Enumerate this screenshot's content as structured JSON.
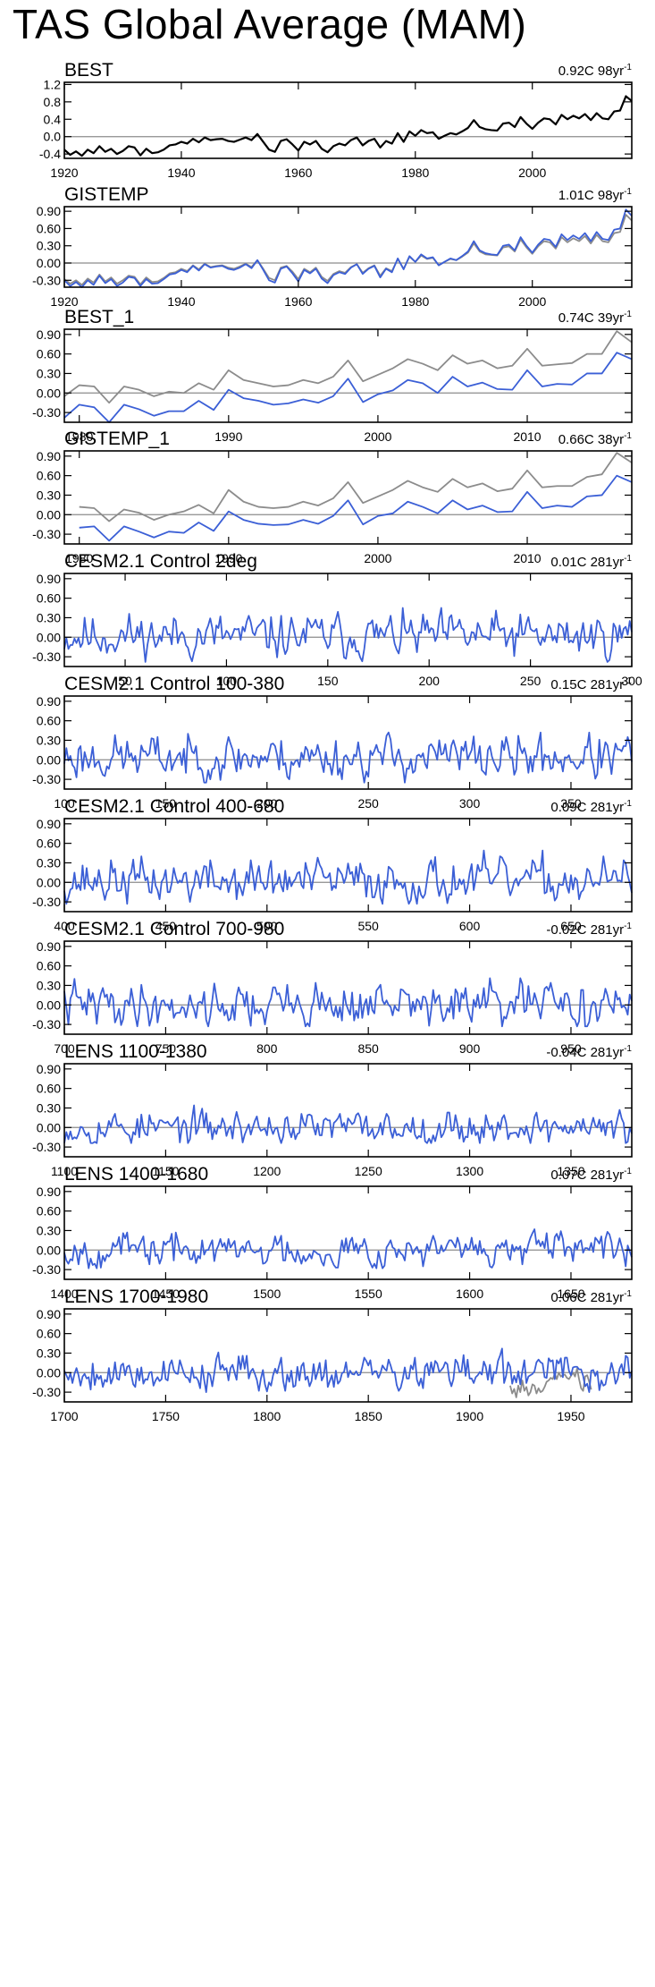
{
  "page": {
    "title": "TAS Global Average (MAM)"
  },
  "colors": {
    "obs": "#000000",
    "model": "#3b5fd6",
    "ref": "#8c8c8c",
    "zero": "#8c8c8c"
  },
  "chart_data": [
    {
      "type": "line",
      "title": "BEST",
      "stat": "0.92C 98yr",
      "stat_sup": "-1",
      "xlim": [
        1920,
        2017
      ],
      "ylim": [
        -0.5,
        1.25
      ],
      "xticks": [
        1920,
        1940,
        1960,
        1980,
        2000
      ],
      "yticks": [
        -0.4,
        0.0,
        0.4,
        0.8,
        1.2
      ],
      "ytick_labels": [
        "-0.4",
        "0.0",
        "0.4",
        "0.8",
        "1.2"
      ],
      "series": [
        {
          "role": "obs",
          "x_start": 1920,
          "values": [
            -0.3,
            -0.42,
            -0.34,
            -0.44,
            -0.3,
            -0.38,
            -0.22,
            -0.35,
            -0.28,
            -0.4,
            -0.33,
            -0.22,
            -0.25,
            -0.43,
            -0.28,
            -0.38,
            -0.36,
            -0.3,
            -0.2,
            -0.18,
            -0.12,
            -0.16,
            -0.05,
            -0.13,
            -0.02,
            -0.08,
            -0.06,
            -0.05,
            -0.1,
            -0.12,
            -0.07,
            -0.02,
            -0.08,
            0.06,
            -0.12,
            -0.3,
            -0.35,
            -0.1,
            -0.06,
            -0.18,
            -0.32,
            -0.12,
            -0.18,
            -0.1,
            -0.28,
            -0.36,
            -0.22,
            -0.16,
            -0.2,
            -0.08,
            -0.02,
            -0.2,
            -0.1,
            -0.05,
            -0.25,
            -0.1,
            -0.16,
            0.08,
            -0.12,
            0.12,
            0.02,
            0.15,
            0.08,
            0.1,
            -0.05,
            0.02,
            0.08,
            0.05,
            0.12,
            0.2,
            0.38,
            0.22,
            0.17,
            0.15,
            0.14,
            0.3,
            0.32,
            0.22,
            0.45,
            0.3,
            0.18,
            0.32,
            0.42,
            0.4,
            0.28,
            0.5,
            0.4,
            0.48,
            0.42,
            0.52,
            0.38,
            0.54,
            0.42,
            0.4,
            0.58,
            0.6,
            0.93,
            0.82
          ]
        }
      ]
    },
    {
      "type": "line",
      "title": "GISTEMP",
      "stat": "1.01C 98yr",
      "stat_sup": "-1",
      "xlim": [
        1920,
        2017
      ],
      "ylim": [
        -0.42,
        0.98
      ],
      "xticks": [
        1920,
        1940,
        1960,
        1980,
        2000
      ],
      "yticks": [
        -0.3,
        0.0,
        0.3,
        0.6,
        0.9
      ],
      "ytick_labels": [
        "-0.30",
        "0.00",
        "0.30",
        "0.60",
        "0.90"
      ],
      "series": [
        {
          "role": "ref",
          "x_start": 1920,
          "values": [
            -0.28,
            -0.36,
            -0.3,
            -0.38,
            -0.27,
            -0.34,
            -0.2,
            -0.32,
            -0.25,
            -0.36,
            -0.3,
            -0.22,
            -0.24,
            -0.37,
            -0.25,
            -0.33,
            -0.32,
            -0.26,
            -0.18,
            -0.16,
            -0.1,
            -0.14,
            -0.04,
            -0.11,
            -0.01,
            -0.07,
            -0.05,
            -0.04,
            -0.08,
            -0.1,
            -0.06,
            -0.01,
            -0.07,
            0.05,
            -0.1,
            -0.26,
            -0.3,
            -0.08,
            -0.05,
            -0.15,
            -0.28,
            -0.1,
            -0.16,
            -0.08,
            -0.24,
            -0.31,
            -0.19,
            -0.14,
            -0.17,
            -0.07,
            -0.02,
            -0.17,
            -0.09,
            -0.04,
            -0.22,
            -0.09,
            -0.14,
            0.07,
            -0.1,
            0.11,
            0.02,
            0.13,
            0.07,
            0.09,
            -0.04,
            0.02,
            0.07,
            0.05,
            0.11,
            0.18,
            0.34,
            0.2,
            0.15,
            0.14,
            0.13,
            0.27,
            0.29,
            0.2,
            0.41,
            0.27,
            0.16,
            0.29,
            0.38,
            0.36,
            0.25,
            0.45,
            0.36,
            0.43,
            0.38,
            0.47,
            0.34,
            0.49,
            0.38,
            0.36,
            0.52,
            0.54,
            0.84,
            0.74
          ]
        },
        {
          "role": "model",
          "x_start": 1920,
          "values": [
            -0.3,
            -0.4,
            -0.33,
            -0.42,
            -0.3,
            -0.38,
            -0.22,
            -0.35,
            -0.28,
            -0.4,
            -0.34,
            -0.24,
            -0.26,
            -0.4,
            -0.28,
            -0.36,
            -0.35,
            -0.28,
            -0.2,
            -0.18,
            -0.12,
            -0.16,
            -0.05,
            -0.13,
            -0.02,
            -0.08,
            -0.06,
            -0.05,
            -0.1,
            -0.12,
            -0.08,
            -0.02,
            -0.09,
            0.05,
            -0.12,
            -0.3,
            -0.34,
            -0.1,
            -0.06,
            -0.18,
            -0.32,
            -0.12,
            -0.18,
            -0.1,
            -0.27,
            -0.35,
            -0.21,
            -0.16,
            -0.19,
            -0.08,
            -0.02,
            -0.19,
            -0.1,
            -0.05,
            -0.25,
            -0.1,
            -0.16,
            0.08,
            -0.11,
            0.12,
            0.02,
            0.15,
            0.08,
            0.1,
            -0.04,
            0.02,
            0.08,
            0.05,
            0.12,
            0.2,
            0.38,
            0.22,
            0.17,
            0.15,
            0.14,
            0.3,
            0.32,
            0.22,
            0.45,
            0.3,
            0.18,
            0.32,
            0.42,
            0.4,
            0.28,
            0.5,
            0.4,
            0.48,
            0.42,
            0.52,
            0.38,
            0.54,
            0.42,
            0.4,
            0.58,
            0.6,
            0.93,
            0.82
          ]
        }
      ]
    },
    {
      "type": "line",
      "title": "BEST_1",
      "stat": "0.74C 39yr",
      "stat_sup": "-1",
      "xlim": [
        1979,
        2017
      ],
      "ylim": [
        -0.45,
        0.98
      ],
      "xticks": [
        1980,
        1990,
        2000,
        2010
      ],
      "yticks": [
        -0.3,
        0.0,
        0.3,
        0.6,
        0.9
      ],
      "ytick_labels": [
        "-0.30",
        "0.00",
        "0.30",
        "0.60",
        "0.90"
      ],
      "series": [
        {
          "role": "ref",
          "x_start": 1979,
          "values": [
            -0.05,
            0.12,
            0.1,
            -0.15,
            0.1,
            0.05,
            -0.05,
            0.02,
            0.0,
            0.15,
            0.05,
            0.35,
            0.2,
            0.15,
            0.1,
            0.12,
            0.2,
            0.15,
            0.25,
            0.5,
            0.18,
            0.28,
            0.38,
            0.52,
            0.45,
            0.35,
            0.58,
            0.45,
            0.5,
            0.38,
            0.42,
            0.68,
            0.42,
            0.44,
            0.46,
            0.6,
            0.6,
            0.95,
            0.78
          ]
        },
        {
          "role": "model",
          "x_start": 1979,
          "values": [
            -0.38,
            -0.18,
            -0.22,
            -0.45,
            -0.18,
            -0.25,
            -0.35,
            -0.28,
            -0.28,
            -0.12,
            -0.26,
            0.05,
            -0.08,
            -0.12,
            -0.18,
            -0.16,
            -0.1,
            -0.15,
            -0.05,
            0.22,
            -0.14,
            -0.02,
            0.04,
            0.2,
            0.15,
            0.0,
            0.25,
            0.1,
            0.16,
            0.06,
            0.05,
            0.35,
            0.1,
            0.14,
            0.13,
            0.3,
            0.3,
            0.62,
            0.52
          ]
        }
      ]
    },
    {
      "type": "line",
      "title": "GISTEMP_1",
      "stat": "0.66C 38yr",
      "stat_sup": "-1",
      "xlim": [
        1979,
        2017
      ],
      "ylim": [
        -0.45,
        0.98
      ],
      "xticks": [
        1980,
        1990,
        2000,
        2010
      ],
      "yticks": [
        -0.3,
        0.0,
        0.3,
        0.6,
        0.9
      ],
      "ytick_labels": [
        "-0.30",
        "0.00",
        "0.30",
        "0.60",
        "0.90"
      ],
      "series": [
        {
          "role": "ref",
          "x_start": 1980,
          "values": [
            0.12,
            0.1,
            -0.1,
            0.08,
            0.03,
            -0.08,
            0.0,
            0.05,
            0.15,
            0.02,
            0.38,
            0.2,
            0.12,
            0.1,
            0.12,
            0.2,
            0.14,
            0.25,
            0.5,
            0.18,
            0.28,
            0.38,
            0.52,
            0.42,
            0.35,
            0.55,
            0.42,
            0.48,
            0.36,
            0.4,
            0.68,
            0.42,
            0.44,
            0.44,
            0.58,
            0.62,
            0.95,
            0.8
          ]
        },
        {
          "role": "model",
          "x_start": 1980,
          "values": [
            -0.2,
            -0.18,
            -0.4,
            -0.18,
            -0.26,
            -0.35,
            -0.26,
            -0.28,
            -0.12,
            -0.25,
            0.05,
            -0.08,
            -0.14,
            -0.16,
            -0.15,
            -0.08,
            -0.14,
            -0.02,
            0.22,
            -0.15,
            -0.02,
            0.02,
            0.2,
            0.12,
            0.02,
            0.22,
            0.08,
            0.14,
            0.04,
            0.05,
            0.35,
            0.1,
            0.14,
            0.12,
            0.28,
            0.3,
            0.6,
            0.5
          ]
        }
      ]
    },
    {
      "type": "line",
      "title": "CESM2.1 Control 2deg",
      "stat": "0.01C 281yr",
      "stat_sup": "-1",
      "xlim": [
        20,
        300
      ],
      "ylim": [
        -0.45,
        0.98
      ],
      "xticks": [
        50,
        100,
        150,
        200,
        250,
        300
      ],
      "yticks": [
        -0.3,
        0.0,
        0.3,
        0.6,
        0.9
      ],
      "ytick_labels": [
        "-0.30",
        "0.00",
        "0.30",
        "0.60",
        "0.90"
      ],
      "series": [
        {
          "role": "model",
          "x_start": 20,
          "noise": {
            "seed": 11,
            "amp": 0.16,
            "mean": 0.02,
            "max": 0.48,
            "min": -0.38
          }
        }
      ]
    },
    {
      "type": "line",
      "title": "CESM2.1 Control 100-380",
      "stat": "0.15C 281yr",
      "stat_sup": "-1",
      "xlim": [
        100,
        380
      ],
      "ylim": [
        -0.45,
        0.98
      ],
      "xticks": [
        100,
        150,
        200,
        250,
        300,
        350
      ],
      "yticks": [
        -0.3,
        0.0,
        0.3,
        0.6,
        0.9
      ],
      "ytick_labels": [
        "-0.30",
        "0.00",
        "0.30",
        "0.60",
        "0.90"
      ],
      "series": [
        {
          "role": "model",
          "x_start": 100,
          "noise": {
            "seed": 23,
            "amp": 0.16,
            "mean": 0.04,
            "max": 0.5,
            "min": -0.35
          }
        }
      ]
    },
    {
      "type": "line",
      "title": "CESM2.1 Control 400-680",
      "stat": "0.09C 281yr",
      "stat_sup": "-1",
      "xlim": [
        400,
        680
      ],
      "ylim": [
        -0.45,
        0.98
      ],
      "xticks": [
        400,
        450,
        500,
        550,
        600,
        650
      ],
      "yticks": [
        -0.3,
        0.0,
        0.3,
        0.6,
        0.9
      ],
      "ytick_labels": [
        "-0.30",
        "0.00",
        "0.30",
        "0.60",
        "0.90"
      ],
      "series": [
        {
          "role": "model",
          "x_start": 400,
          "noise": {
            "seed": 37,
            "amp": 0.16,
            "mean": 0.02,
            "max": 0.62,
            "min": -0.33
          }
        }
      ]
    },
    {
      "type": "line",
      "title": "CESM2.1 Control 700-980",
      "stat": "-0.02C 281yr",
      "stat_sup": "-1",
      "xlim": [
        700,
        980
      ],
      "ylim": [
        -0.45,
        0.98
      ],
      "xticks": [
        700,
        750,
        800,
        850,
        900,
        950
      ],
      "yticks": [
        -0.3,
        0.0,
        0.3,
        0.6,
        0.9
      ],
      "ytick_labels": [
        "-0.30",
        "0.00",
        "0.30",
        "0.60",
        "0.90"
      ],
      "series": [
        {
          "role": "model",
          "x_start": 700,
          "noise": {
            "seed": 41,
            "amp": 0.16,
            "mean": 0.0,
            "max": 0.42,
            "min": -0.33
          }
        }
      ]
    },
    {
      "type": "line",
      "title": "LENS 1100-1380",
      "stat": "-0.04C 281yr",
      "stat_sup": "-1",
      "xlim": [
        1100,
        1380
      ],
      "ylim": [
        -0.45,
        0.98
      ],
      "xticks": [
        1100,
        1150,
        1200,
        1250,
        1300,
        1350
      ],
      "yticks": [
        -0.3,
        0.0,
        0.3,
        0.6,
        0.9
      ],
      "ytick_labels": [
        "-0.30",
        "0.00",
        "0.30",
        "0.60",
        "0.90"
      ],
      "series": [
        {
          "role": "model",
          "x_start": 1100,
          "noise": {
            "seed": 53,
            "amp": 0.12,
            "mean": 0.0,
            "max": 0.38,
            "min": -0.24
          }
        }
      ]
    },
    {
      "type": "line",
      "title": "LENS 1400-1680",
      "stat": "0.07C 281yr",
      "stat_sup": "-1",
      "xlim": [
        1400,
        1680
      ],
      "ylim": [
        -0.45,
        0.98
      ],
      "xticks": [
        1400,
        1450,
        1500,
        1550,
        1600,
        1650
      ],
      "yticks": [
        -0.3,
        0.0,
        0.3,
        0.6,
        0.9
      ],
      "ytick_labels": [
        "-0.30",
        "0.00",
        "0.30",
        "0.60",
        "0.90"
      ],
      "series": [
        {
          "role": "model",
          "x_start": 1400,
          "noise": {
            "seed": 67,
            "amp": 0.12,
            "mean": 0.0,
            "max": 0.34,
            "min": -0.28
          }
        }
      ]
    },
    {
      "type": "line",
      "title": "LENS 1700-1980",
      "stat": "0.06C 281yr",
      "stat_sup": "-1",
      "xlim": [
        1700,
        1980
      ],
      "ylim": [
        -0.45,
        0.98
      ],
      "xticks": [
        1700,
        1750,
        1800,
        1850,
        1900,
        1950
      ],
      "yticks": [
        -0.3,
        0.0,
        0.3,
        0.6,
        0.9
      ],
      "ytick_labels": [
        "-0.30",
        "0.00",
        "0.30",
        "0.60",
        "0.90"
      ],
      "series": [
        {
          "role": "model",
          "x_start": 1700,
          "noise": {
            "seed": 79,
            "amp": 0.13,
            "mean": 0.0,
            "max": 0.42,
            "min": -0.3
          }
        },
        {
          "role": "ref",
          "x_start": 1920,
          "values": [
            -0.2,
            -0.32,
            -0.25,
            -0.38,
            -0.2,
            -0.3,
            -0.12,
            -0.28,
            -0.22,
            -0.35,
            -0.3,
            -0.18,
            -0.2,
            -0.32,
            -0.24,
            -0.3,
            -0.28,
            -0.22,
            -0.14,
            -0.12,
            -0.08,
            -0.1,
            -0.02,
            -0.1,
            0.0,
            -0.06,
            -0.04,
            -0.03,
            -0.08,
            -0.1,
            -0.05,
            0.0,
            -0.06,
            0.06,
            -0.1,
            -0.24,
            -0.28,
            -0.06,
            -0.04,
            -0.14,
            -0.26
          ]
        }
      ]
    }
  ]
}
